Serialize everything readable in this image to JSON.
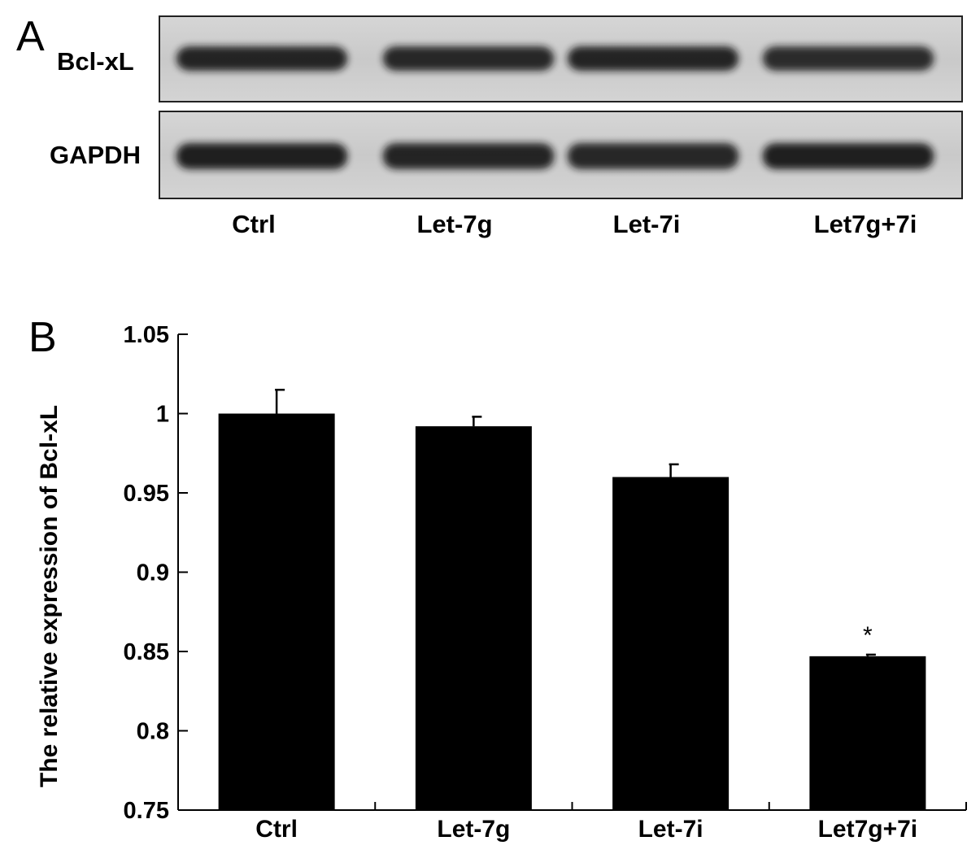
{
  "panel_a": {
    "letter": "A",
    "blots": [
      {
        "label": "Bcl-xL",
        "band_intensity": [
          0.92,
          0.9,
          0.92,
          0.88
        ]
      },
      {
        "label": "GAPDH",
        "band_intensity": [
          0.95,
          0.92,
          0.9,
          0.95
        ]
      }
    ],
    "lanes": [
      "Ctrl",
      "Let-7g",
      "Let-7i",
      "Let7g+7i"
    ],
    "colors": {
      "membrane": "#cfcfcf",
      "band": "#141414",
      "frame": "#222222"
    }
  },
  "panel_b": {
    "letter": "B"
  },
  "chart_data": {
    "type": "bar",
    "categories": [
      "Ctrl",
      "Let-7g",
      "Let-7i",
      "Let7g+7i"
    ],
    "values": [
      1.0,
      0.992,
      0.96,
      0.847
    ],
    "errors": [
      0.015,
      0.006,
      0.008,
      0.001
    ],
    "annotations": [
      "",
      "",
      "",
      "*"
    ],
    "title": "",
    "xlabel": "",
    "ylabel": "The relative expression of Bcl-xL",
    "ylim": [
      0.75,
      1.05
    ],
    "yticks": [
      {
        "value": 0.75,
        "label": "0.75"
      },
      {
        "value": 0.8,
        "label": "0.8"
      },
      {
        "value": 0.85,
        "label": "0.85"
      },
      {
        "value": 0.9,
        "label": "0.9"
      },
      {
        "value": 0.95,
        "label": "0.95"
      },
      {
        "value": 1.0,
        "label": "1"
      },
      {
        "value": 1.05,
        "label": "1.05"
      }
    ],
    "grid": false,
    "bar_color": "#000000"
  }
}
